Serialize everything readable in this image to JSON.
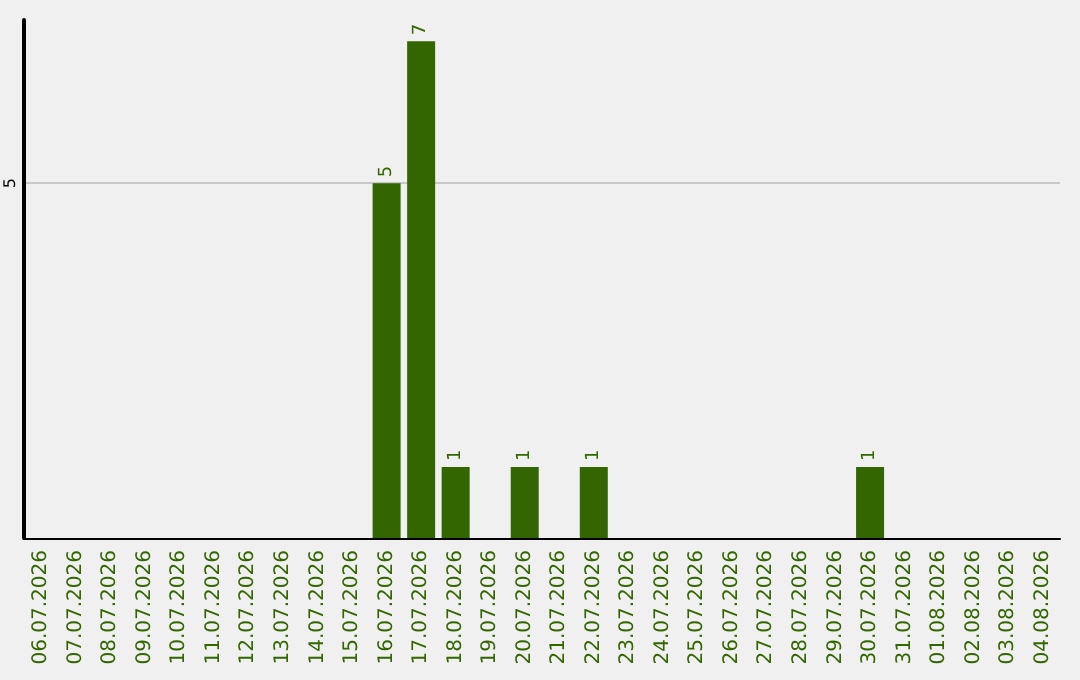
{
  "chart_data": {
    "type": "bar",
    "categories": [
      "06.07.2026",
      "07.07.2026",
      "08.07.2026",
      "09.07.2026",
      "10.07.2026",
      "11.07.2026",
      "12.07.2026",
      "13.07.2026",
      "14.07.2026",
      "15.07.2026",
      "16.07.2026",
      "17.07.2026",
      "18.07.2026",
      "19.07.2026",
      "20.07.2026",
      "21.07.2026",
      "22.07.2026",
      "23.07.2026",
      "24.07.2026",
      "25.07.2026",
      "26.07.2026",
      "27.07.2026",
      "28.07.2026",
      "29.07.2026",
      "30.07.2026",
      "31.07.2026",
      "01.08.2026",
      "02.08.2026",
      "03.08.2026",
      "04.08.2026"
    ],
    "values": [
      0,
      0,
      0,
      0,
      0,
      0,
      0,
      0,
      0,
      0,
      5,
      7,
      1,
      0,
      1,
      0,
      1,
      0,
      0,
      0,
      0,
      0,
      0,
      0,
      1,
      0,
      0,
      0,
      0,
      0
    ],
    "value_labels": [
      null,
      null,
      null,
      null,
      null,
      null,
      null,
      null,
      null,
      null,
      "5",
      "7",
      "1",
      null,
      "1",
      null,
      "1",
      null,
      null,
      null,
      null,
      null,
      null,
      null,
      "1",
      null,
      null,
      null,
      null,
      null
    ],
    "color": "#336600",
    "ylim": [
      0,
      7.3
    ],
    "yticks": [
      5
    ],
    "grid": "y"
  }
}
